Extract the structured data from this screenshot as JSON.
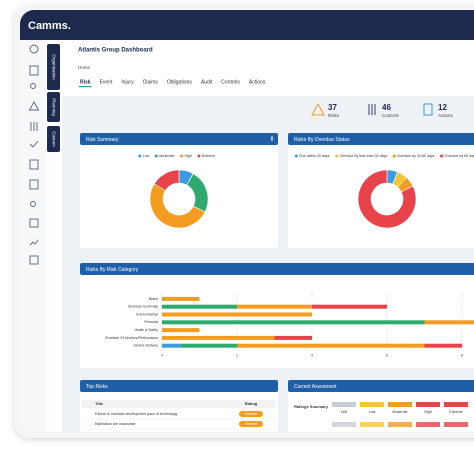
{
  "header": {
    "logo": "Camms."
  },
  "side_tabs": [
    "Organisation",
    "Planning",
    "Custom"
  ],
  "page": {
    "title": "Atlantis Group Dashboard",
    "breadcrumb": "Home"
  },
  "tabs": [
    "Risk",
    "Event",
    "Injury",
    "Claims",
    "Obligations",
    "Audit",
    "Controls",
    "Actions"
  ],
  "stats": [
    {
      "value": 37,
      "label": "Risks"
    },
    {
      "value": 46,
      "label": "Controls"
    },
    {
      "value": 12,
      "label": "Actions"
    }
  ],
  "chart_data": [
    {
      "type": "pie",
      "title": "Risk Summary",
      "categories": [
        "Low",
        "Moderate",
        "High",
        "Extreme"
      ],
      "values": [
        3,
        9,
        19,
        6
      ],
      "colors": [
        "#3b9be0",
        "#2eaa6e",
        "#f39c1f",
        "#e8424a"
      ]
    },
    {
      "type": "pie",
      "title": "Risks By Overdue Status",
      "categories": [
        "Due within 30 days",
        "Overdue by less than 30 days",
        "Overdue by 30-60 days",
        "Overdue by 60 days"
      ],
      "values": [
        1,
        1,
        1,
        14
      ],
      "colors": [
        "#3b9be0",
        "#f7c531",
        "#f39c1f",
        "#e8424a"
      ]
    },
    {
      "type": "bar",
      "orientation": "horizontal",
      "stacked": true,
      "title": "Risks By Risk Category",
      "categories": [
        "Brand",
        "Business Continuity",
        "Environmental",
        "Financial",
        "Health & Safety",
        "Provision Of Services/Performance",
        "Service Delivery"
      ],
      "series": [
        {
          "color": "#3b9be0",
          "values": [
            0,
            0,
            0,
            0,
            0,
            0,
            0.5
          ]
        },
        {
          "color": "#2eaa6e",
          "values": [
            0,
            2,
            0,
            7,
            0,
            0,
            1.5
          ]
        },
        {
          "color": "#f39c1f",
          "values": [
            1,
            2,
            4,
            1.5,
            1,
            3,
            5
          ]
        },
        {
          "color": "#e8424a",
          "values": [
            0,
            2,
            0,
            0,
            0,
            1,
            1
          ]
        }
      ],
      "xlim": [
        0,
        8
      ],
      "xticks": [
        0,
        2,
        4,
        6,
        8
      ],
      "grid": true
    }
  ],
  "top_risks": {
    "title": "Top Risks",
    "columns": [
      "Title",
      "Rating"
    ],
    "rows": [
      [
        "Failure to maintain development pace of technology",
        "Extreme"
      ],
      [
        "Estimation are inaccurate",
        "Extreme"
      ]
    ]
  },
  "current_assessment": {
    "title": "Current Assesment",
    "row_header": "Ratings Summary",
    "columns": [
      "N/A",
      "Low",
      "Moderate",
      "High",
      "Extreme"
    ],
    "colors": [
      "#c9ccd2",
      "#f7c531",
      "#f39c1f",
      "#e8424a",
      "#e8424a"
    ]
  }
}
